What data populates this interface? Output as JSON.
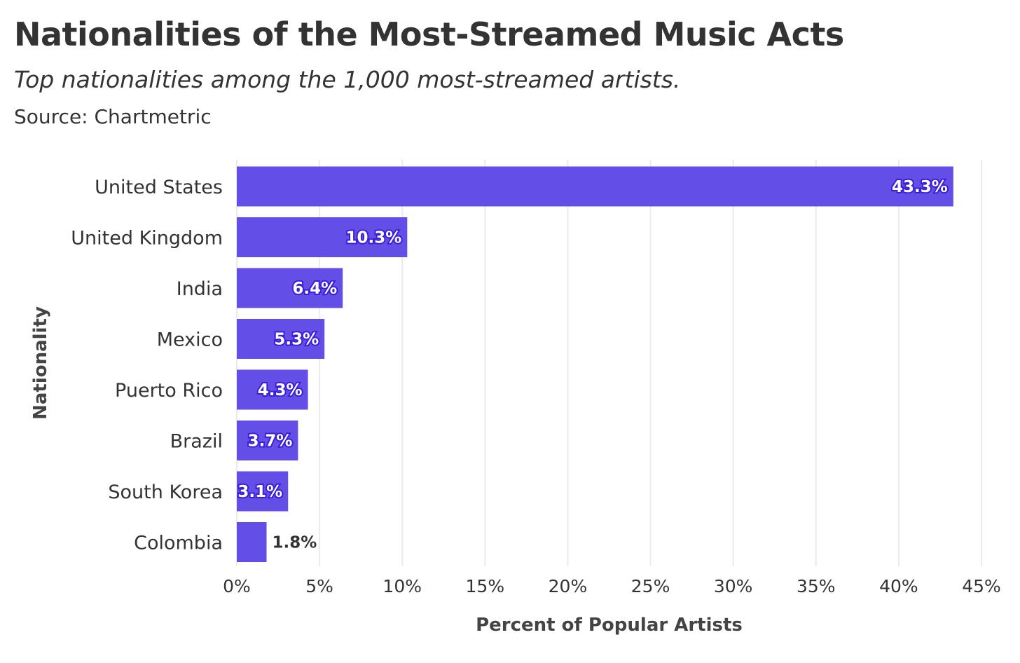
{
  "chart_data": {
    "type": "bar",
    "orientation": "horizontal",
    "title": "Nationalities of the Most-Streamed Music Acts",
    "subtitle": "Top nationalities among the 1,000 most-streamed artists.",
    "source": "Source: Chartmetric",
    "xlabel": "Percent of Popular Artists",
    "ylabel": "Nationality",
    "xlim": [
      0,
      45
    ],
    "x_ticks": [
      "0%",
      "5%",
      "10%",
      "15%",
      "20%",
      "25%",
      "30%",
      "35%",
      "40%",
      "45%"
    ],
    "x_tick_values": [
      0,
      5,
      10,
      15,
      20,
      25,
      30,
      35,
      40,
      45
    ],
    "categories": [
      "United States",
      "United Kingdom",
      "India",
      "Mexico",
      "Puerto Rico",
      "Brazil",
      "South Korea",
      "Colombia"
    ],
    "values": [
      43.3,
      10.3,
      6.4,
      5.3,
      4.3,
      3.7,
      3.1,
      1.8
    ],
    "value_labels": [
      "43.3%",
      "10.3%",
      "6.4%",
      "5.3%",
      "4.3%",
      "3.7%",
      "3.1%",
      "1.8%"
    ],
    "bar_color": "#634ee8",
    "grid": "vertical",
    "legend": "none"
  }
}
